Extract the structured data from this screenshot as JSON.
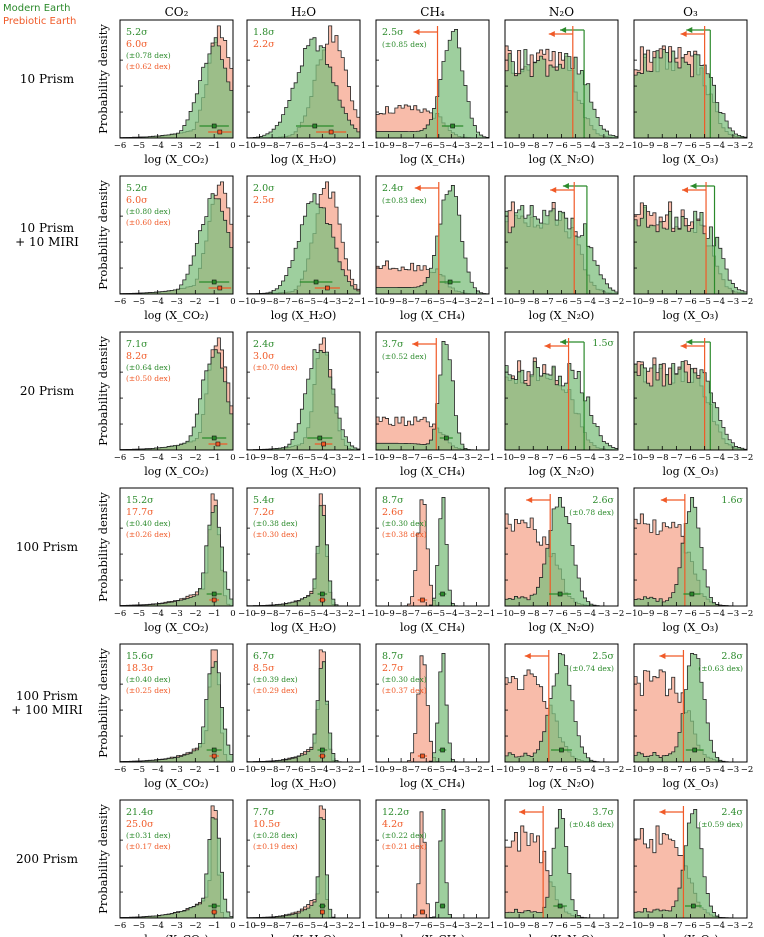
{
  "legend": [
    {
      "label": "Modern Earth",
      "color": "#2b8a2b"
    },
    {
      "label": "Prebiotic Earth",
      "color": "#f05a28"
    }
  ],
  "colors": {
    "modern_fill": "#7dbf7d",
    "prebiotic_fill": "#f6a58e",
    "overlap_fill": "#b9955b",
    "modern_text": "#2b8a2b",
    "prebiotic_text": "#f05a28"
  },
  "columns": [
    {
      "title": "CO₂",
      "xlabel": "log (X_CO₂)",
      "xlim": [
        -6,
        0
      ],
      "ticks": [
        "−6",
        "−5",
        "−4",
        "−3",
        "−2",
        "−1",
        "0"
      ]
    },
    {
      "title": "H₂O",
      "xlabel": "log (X_H₂O)",
      "xlim": [
        -10,
        -1
      ],
      "ticks": [
        "−10",
        "−9",
        "−8",
        "−7",
        "−6",
        "−5",
        "−4",
        "−3",
        "−2",
        "−1"
      ]
    },
    {
      "title": "CH₄",
      "xlabel": "log (X_CH₄)",
      "xlim": [
        -10,
        -1
      ],
      "ticks": [
        "−10",
        "−9",
        "−8",
        "−7",
        "−6",
        "−5",
        "−4",
        "−3",
        "−2",
        "−1"
      ]
    },
    {
      "title": "N₂O",
      "xlabel": "log (X_N₂O)",
      "xlim": [
        -10,
        -2
      ],
      "ticks": [
        "−10",
        "−9",
        "−8",
        "−7",
        "−6",
        "−5",
        "−4",
        "−3",
        "−2"
      ]
    },
    {
      "title": "O₃",
      "xlabel": "log (X_O₃)",
      "xlim": [
        -10,
        -2
      ],
      "ticks": [
        "−10",
        "−9",
        "−8",
        "−7",
        "−6",
        "−5",
        "−4",
        "−3",
        "−2"
      ]
    }
  ],
  "ylabel": "Probability density",
  "chart_data": {
    "type": "histogram-grid",
    "rows": [
      {
        "label": [
          "10 Prism"
        ],
        "cells": [
          {
            "kind": "det",
            "m": {
              "mu": -1.0,
              "sd": 0.78,
              "sig": "5.2σ",
              "dex": "(±0.78 dex)"
            },
            "p": {
              "mu": -0.7,
              "sd": 0.62,
              "sig": "6.0σ",
              "dex": "(±0.62 dex)"
            }
          },
          {
            "kind": "det",
            "m": {
              "mu": -4.6,
              "sd": 1.5,
              "sig": "1.8σ",
              "dex": ""
            },
            "p": {
              "mu": -3.3,
              "sd": 1.2,
              "sig": "2.2σ",
              "dex": ""
            }
          },
          {
            "kind": "mix",
            "m": {
              "mu": -3.9,
              "sd": 0.85,
              "sig": "2.5σ",
              "dex": "(±0.85 dex)"
            },
            "p": {
              "ul": -5.1
            }
          },
          {
            "kind": "ul",
            "m": {
              "ul": -4.4
            },
            "p": {
              "ul": -5.2
            }
          },
          {
            "kind": "ul",
            "m": {
              "ul": -4.6
            },
            "p": {
              "ul": -5.0
            }
          }
        ]
      },
      {
        "label": [
          "10 Prism",
          "+ 10 MIRI"
        ],
        "cells": [
          {
            "kind": "det",
            "m": {
              "mu": -1.0,
              "sd": 0.8,
              "sig": "5.2σ",
              "dex": "(±0.80 dex)"
            },
            "p": {
              "mu": -0.7,
              "sd": 0.6,
              "sig": "6.0σ",
              "dex": "(±0.60 dex)"
            }
          },
          {
            "kind": "det",
            "m": {
              "mu": -4.5,
              "sd": 1.3,
              "sig": "2.0σ",
              "dex": ""
            },
            "p": {
              "mu": -3.6,
              "sd": 1.0,
              "sig": "2.5σ",
              "dex": ""
            }
          },
          {
            "kind": "mix",
            "m": {
              "mu": -4.1,
              "sd": 0.83,
              "sig": "2.4σ",
              "dex": "(±0.83 dex)"
            },
            "p": {
              "ul": -5.0
            }
          },
          {
            "kind": "ul",
            "m": {
              "ul": -4.2
            },
            "p": {
              "ul": -5.1
            }
          },
          {
            "kind": "ul",
            "m": {
              "ul": -4.3
            },
            "p": {
              "ul": -4.9
            }
          }
        ]
      },
      {
        "label": [
          "20 Prism"
        ],
        "cells": [
          {
            "kind": "det",
            "m": {
              "mu": -1.0,
              "sd": 0.64,
              "sig": "7.1σ",
              "dex": "(±0.64 dex)"
            },
            "p": {
              "mu": -0.8,
              "sd": 0.5,
              "sig": "8.2σ",
              "dex": "(±0.50 dex)"
            }
          },
          {
            "kind": "det",
            "m": {
              "mu": -4.2,
              "sd": 1.0,
              "sig": "2.4σ",
              "dex": ""
            },
            "p": {
              "mu": -3.9,
              "sd": 0.7,
              "sig": "3.0σ",
              "dex": "(±0.70 dex)"
            }
          },
          {
            "kind": "mix",
            "m": {
              "mu": -4.4,
              "sd": 0.52,
              "sig": "3.7σ",
              "dex": "(±0.52 dex)"
            },
            "p": {
              "ul": -5.2
            }
          },
          {
            "kind": "ul",
            "m": {
              "ul": -4.4,
              "sig": "1.5σ"
            },
            "p": {
              "ul": -5.5
            }
          },
          {
            "kind": "ul",
            "m": {
              "ul": -4.6
            },
            "p": {
              "ul": -5.0
            }
          }
        ]
      },
      {
        "label": [
          "100 Prism"
        ],
        "cells": [
          {
            "kind": "det",
            "m": {
              "mu": -1.0,
              "sd": 0.4,
              "sig": "15.2σ",
              "dex": "(±0.40 dex)"
            },
            "p": {
              "mu": -1.0,
              "sd": 0.26,
              "sig": "17.7σ",
              "dex": "(±0.26 dex)"
            }
          },
          {
            "kind": "det",
            "m": {
              "mu": -4.0,
              "sd": 0.38,
              "sig": "5.4σ",
              "dex": "(±0.38 dex)"
            },
            "p": {
              "mu": -4.0,
              "sd": 0.3,
              "sig": "7.2σ",
              "dex": "(±0.30 dex)"
            }
          },
          {
            "kind": "det2",
            "m": {
              "mu": -4.7,
              "sd": 0.3,
              "sig": "8.7σ",
              "dex": "(±0.30 dex)"
            },
            "p": {
              "mu": -6.3,
              "sd": 0.38,
              "sig": "2.6σ",
              "dex": "(±0.38 dex)"
            }
          },
          {
            "kind": "mixul",
            "m": {
              "mu": -6.1,
              "sd": 0.78,
              "sig": "2.6σ",
              "dex": "(±0.78 dex)"
            },
            "p": {
              "ul": -6.8
            }
          },
          {
            "kind": "mixul",
            "m": {
              "mu": -5.9,
              "sd": 0.6,
              "sig": "1.6σ",
              "dex": ""
            },
            "p": {
              "ul": -6.4
            }
          }
        ]
      },
      {
        "label": [
          "100 Prism",
          "+ 100 MIRI"
        ],
        "cells": [
          {
            "kind": "det",
            "m": {
              "mu": -1.0,
              "sd": 0.4,
              "sig": "15.6σ",
              "dex": "(±0.40 dex)"
            },
            "p": {
              "mu": -1.0,
              "sd": 0.25,
              "sig": "18.3σ",
              "dex": "(±0.25 dex)"
            }
          },
          {
            "kind": "det",
            "m": {
              "mu": -4.0,
              "sd": 0.39,
              "sig": "6.7σ",
              "dex": "(±0.39 dex)"
            },
            "p": {
              "mu": -4.0,
              "sd": 0.29,
              "sig": "8.5σ",
              "dex": "(±0.29 dex)"
            }
          },
          {
            "kind": "det2",
            "m": {
              "mu": -4.7,
              "sd": 0.3,
              "sig": "8.7σ",
              "dex": "(±0.30 dex)"
            },
            "p": {
              "mu": -6.3,
              "sd": 0.37,
              "sig": "2.7σ",
              "dex": "(±0.37 dex)"
            }
          },
          {
            "kind": "mixul",
            "m": {
              "mu": -6.0,
              "sd": 0.74,
              "sig": "2.5σ",
              "dex": "(±0.74 dex)"
            },
            "p": {
              "ul": -6.9
            }
          },
          {
            "kind": "mixul",
            "m": {
              "mu": -5.7,
              "sd": 0.63,
              "sig": "2.8σ",
              "dex": "(±0.63 dex)"
            },
            "p": {
              "ul": -6.5
            }
          }
        ]
      },
      {
        "label": [
          "200 Prism"
        ],
        "cells": [
          {
            "kind": "det",
            "m": {
              "mu": -1.0,
              "sd": 0.31,
              "sig": "21.4σ",
              "dex": "(±0.31 dex)"
            },
            "p": {
              "mu": -1.0,
              "sd": 0.17,
              "sig": "25.0σ",
              "dex": "(±0.17 dex)"
            }
          },
          {
            "kind": "det",
            "m": {
              "mu": -4.0,
              "sd": 0.28,
              "sig": "7.7σ",
              "dex": "(±0.28 dex)"
            },
            "p": {
              "mu": -4.0,
              "sd": 0.19,
              "sig": "10.5σ",
              "dex": "(±0.19 dex)"
            }
          },
          {
            "kind": "det2",
            "m": {
              "mu": -4.7,
              "sd": 0.22,
              "sig": "12.2σ",
              "dex": "(±0.22 dex)"
            },
            "p": {
              "mu": -6.3,
              "sd": 0.21,
              "sig": "4.2σ",
              "dex": "(±0.21 dex)"
            }
          },
          {
            "kind": "mixul",
            "m": {
              "mu": -6.1,
              "sd": 0.48,
              "sig": "3.7σ",
              "dex": "(±0.48 dex)"
            },
            "p": {
              "ul": -7.3
            }
          },
          {
            "kind": "mixul",
            "m": {
              "mu": -5.8,
              "sd": 0.59,
              "sig": "2.4σ",
              "dex": "(±0.59 dex)"
            },
            "p": {
              "ul": -6.5
            }
          }
        ]
      }
    ]
  }
}
